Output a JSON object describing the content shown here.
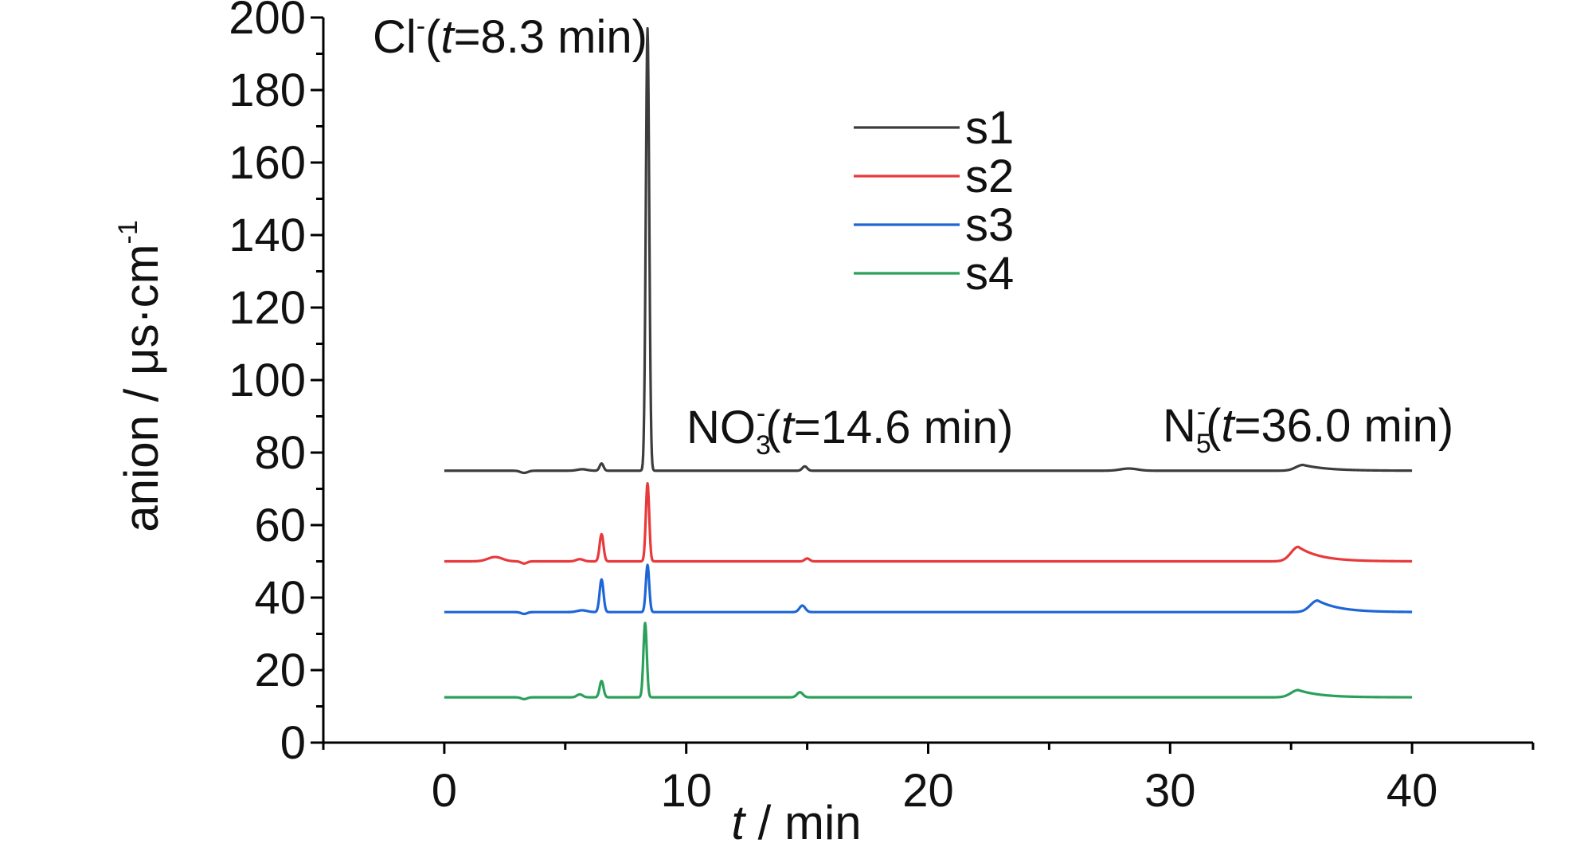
{
  "chart_data": {
    "type": "line",
    "xlabel": {
      "italic": "t",
      "rest": " / min"
    },
    "ylabel": {
      "text": "anion / μs·cm",
      "sup": "-1"
    },
    "xlim": [
      -5,
      45
    ],
    "ylim": [
      0,
      200
    ],
    "xticks": [
      0,
      10,
      20,
      30,
      40
    ],
    "yticks": [
      0,
      20,
      40,
      60,
      80,
      100,
      120,
      140,
      160,
      180,
      200
    ],
    "legend_position": "top-center",
    "annotations": [
      {
        "id": "cl",
        "x": 8.3,
        "y": 194,
        "parts": [
          "Cl",
          "-",
          "(",
          "t",
          "=8.3 min)"
        ]
      },
      {
        "id": "no3",
        "x": 14.6,
        "y": 84,
        "parts": [
          "NO",
          "3",
          "-",
          "(",
          "t",
          "=14.6 min)"
        ]
      },
      {
        "id": "n5",
        "x": 36.0,
        "y": 84,
        "parts": [
          "N",
          "5",
          "-",
          "(",
          "t",
          "=36.0 min)"
        ]
      }
    ],
    "series": [
      {
        "name": "s1",
        "color": "#3d3d3d",
        "baseline": 75,
        "peaks": [
          [
            3.3,
            -0.6,
            0.15
          ],
          [
            5.7,
            0.4,
            0.2
          ],
          [
            6.5,
            2.0,
            0.08
          ],
          [
            8.4,
            122.0,
            0.07
          ],
          [
            14.9,
            1.2,
            0.1
          ],
          [
            28.3,
            0.6,
            0.35
          ]
        ],
        "tail_peak": {
          "x": 35.5,
          "h": 1.6,
          "rise": 0.3,
          "decay": 1.0
        }
      },
      {
        "name": "s2",
        "color": "#e8393b",
        "baseline": 50,
        "peaks": [
          [
            2.1,
            1.2,
            0.3
          ],
          [
            3.3,
            -0.6,
            0.12
          ],
          [
            5.6,
            0.6,
            0.15
          ],
          [
            6.5,
            7.5,
            0.08
          ],
          [
            8.4,
            21.5,
            0.07
          ],
          [
            15.0,
            0.8,
            0.1
          ]
        ],
        "tail_peak": {
          "x": 35.3,
          "h": 4.0,
          "rise": 0.3,
          "decay": 0.9
        }
      },
      {
        "name": "s3",
        "color": "#1e66d6",
        "baseline": 36,
        "peaks": [
          [
            3.3,
            -0.5,
            0.12
          ],
          [
            5.7,
            0.5,
            0.2
          ],
          [
            6.5,
            9.0,
            0.08
          ],
          [
            8.4,
            13.0,
            0.07
          ],
          [
            14.8,
            1.8,
            0.12
          ]
        ],
        "tail_peak": {
          "x": 36.1,
          "h": 3.2,
          "rise": 0.3,
          "decay": 0.9
        }
      },
      {
        "name": "s4",
        "color": "#2aa05a",
        "baseline": 12.5,
        "peaks": [
          [
            3.3,
            -0.5,
            0.12
          ],
          [
            5.6,
            0.8,
            0.12
          ],
          [
            6.5,
            4.5,
            0.08
          ],
          [
            8.3,
            20.5,
            0.07
          ],
          [
            14.7,
            1.4,
            0.12
          ]
        ],
        "tail_peak": {
          "x": 35.3,
          "h": 2.0,
          "rise": 0.3,
          "decay": 0.9
        }
      }
    ]
  }
}
